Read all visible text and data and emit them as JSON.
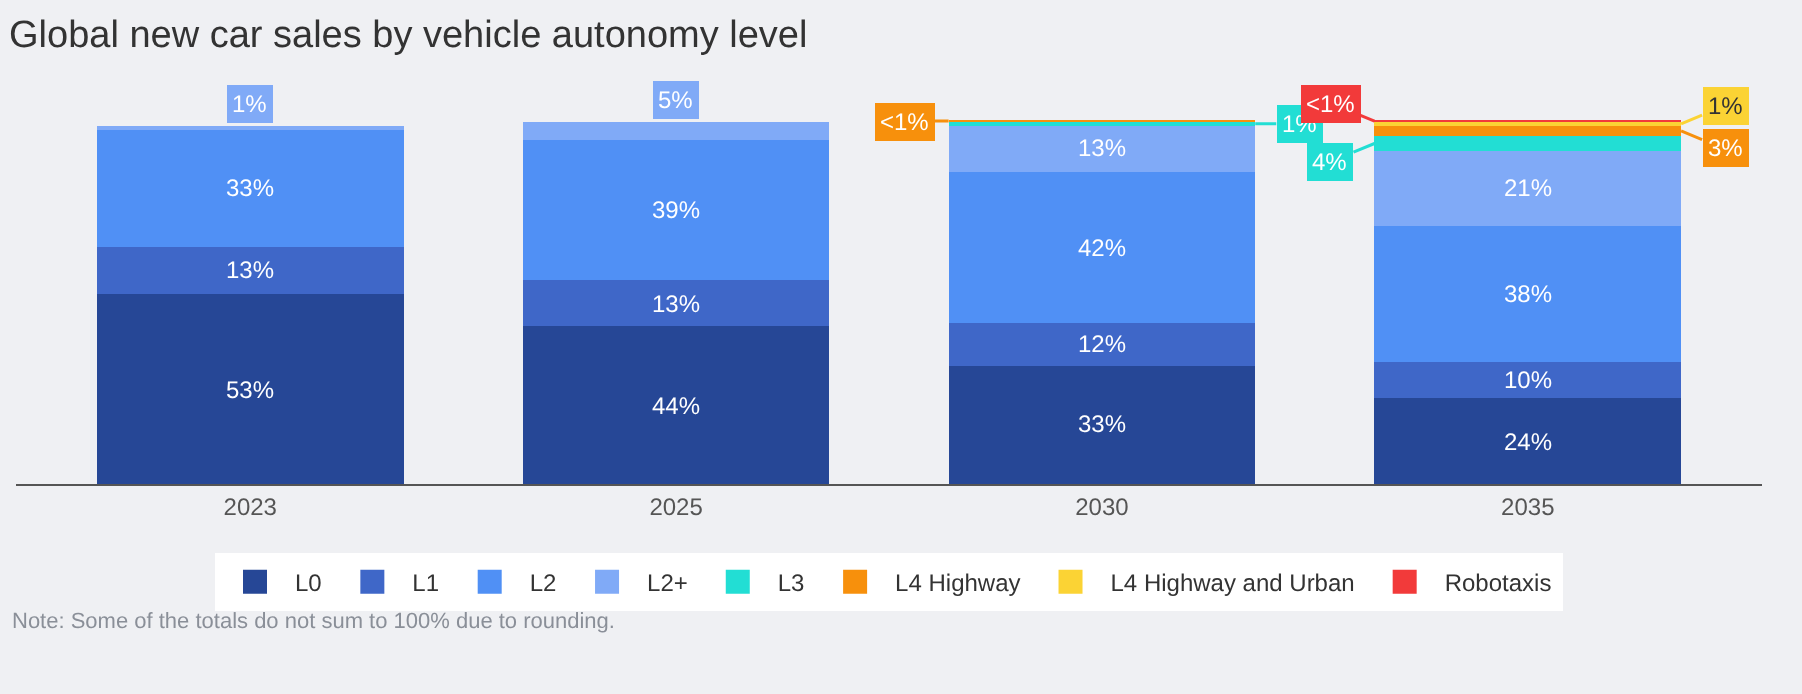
{
  "chart_data": {
    "type": "bar",
    "title": "Global new car sales by vehicle autonomy level",
    "categories": [
      "2023",
      "2025",
      "2030",
      "2035"
    ],
    "stacked": true,
    "tick_labels": "x",
    "grid": false,
    "legend": "bottom",
    "series": [
      {
        "name": "L0",
        "color": "#264796",
        "values": [
          53,
          44,
          33,
          24
        ],
        "value_labels": [
          "53%",
          "44%",
          "33%",
          "24%"
        ]
      },
      {
        "name": "L1",
        "color": "#3f67c8",
        "values": [
          13,
          13,
          12,
          10
        ],
        "value_labels": [
          "13%",
          "13%",
          "12%",
          "10%"
        ]
      },
      {
        "name": "L2",
        "color": "#5090f5",
        "values": [
          33,
          39,
          42,
          38
        ],
        "value_labels": [
          "33%",
          "39%",
          "42%",
          "38%"
        ]
      },
      {
        "name": "L2+",
        "color": "#80aaf7",
        "values": [
          1,
          5,
          13,
          21
        ],
        "value_labels": [
          "1%",
          "5%",
          "13%",
          "21%"
        ]
      },
      {
        "name": "L3",
        "color": "#22ded4",
        "values": [
          null,
          null,
          1,
          4
        ],
        "value_labels": [
          null,
          null,
          "1%",
          "4%"
        ]
      },
      {
        "name": "L4 Highway",
        "color": "#f7900c",
        "values": [
          null,
          null,
          0.5,
          3
        ],
        "value_labels": [
          null,
          null,
          "<1%",
          "3%"
        ]
      },
      {
        "name": "L4 Highway and Urban",
        "color": "#fbd334",
        "values": [
          null,
          null,
          null,
          1
        ],
        "value_labels": [
          null,
          null,
          null,
          "1%"
        ]
      },
      {
        "name": "Robotaxis",
        "color": "#f23a3a",
        "values": [
          null,
          null,
          null,
          0.5
        ],
        "value_labels": [
          null,
          null,
          null,
          "<1%"
        ]
      }
    ],
    "annotations": [
      "Note: Some of the totals do not sum to 100% due to rounding."
    ]
  }
}
